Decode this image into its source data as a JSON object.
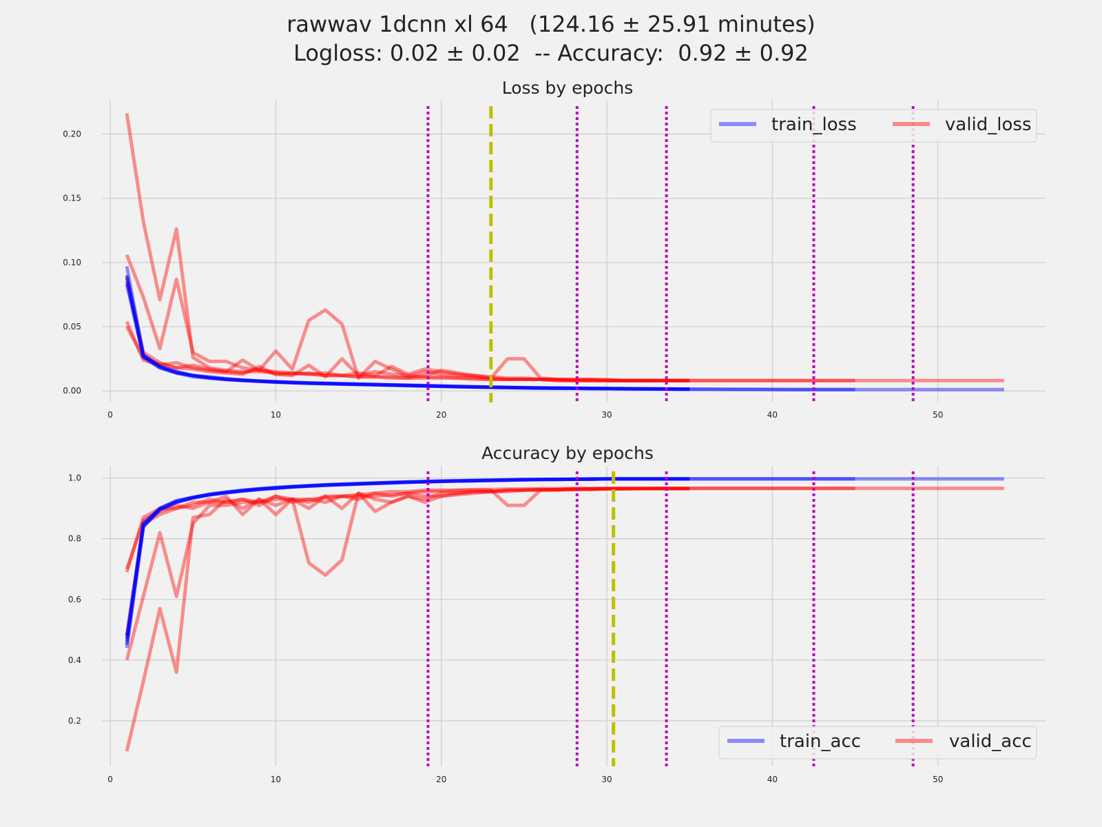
{
  "figure": {
    "title_line1": "rawwav 1dcnn xl 64   (124.16 ± 25.91 minutes)",
    "title_line2": "Logloss: 0.02 ± 0.02  -- Accuracy:  0.92 ± 0.92"
  },
  "colors": {
    "background": "#f1f1f1",
    "grid": "#cfcfcf",
    "train": "#0000ff",
    "valid": "#ff0000",
    "fold_end_marker": "#bf00bf",
    "best_epoch_marker": "#bfbf00"
  },
  "chart_data": [
    {
      "type": "line",
      "title": "Loss by epochs",
      "xlim": [
        -0.5,
        56.5
      ],
      "ylim": [
        -0.009,
        0.226
      ],
      "xticks": [
        0,
        10,
        20,
        30,
        40,
        50
      ],
      "yticks": [
        0.0,
        0.05,
        0.1,
        0.15,
        0.2
      ],
      "ytick_labels": [
        "0.00",
        "0.05",
        "0.10",
        "0.15",
        "0.20"
      ],
      "grid": true,
      "legend": {
        "placement": "top-right",
        "entries": [
          "train_loss",
          "valid_loss"
        ]
      },
      "vlines_dotted": [
        19.2,
        28.2,
        33.6,
        42.5,
        48.5
      ],
      "vline_dashed": 23,
      "series": [
        {
          "kind": "train",
          "values": [
            0.097,
            0.028,
            0.019,
            0.015,
            0.012,
            0.011,
            0.0095,
            0.0085,
            0.0078,
            0.0072,
            0.0067,
            0.0063,
            0.006,
            0.0057,
            0.0054,
            0.0051,
            0.0048,
            0.0045,
            0.0042,
            0.0039,
            0.0036,
            0.0033,
            0.003,
            0.0028,
            0.0026,
            0.0024,
            0.0022,
            0.0021,
            0.002,
            0.0019,
            0.0018,
            0.0017,
            0.0016,
            0.0015,
            0.0014,
            0.0013,
            0.0013,
            0.0012,
            0.0012,
            0.0012,
            0.0011,
            0.0011,
            0.0011,
            0.0011,
            0.0011,
            0.0011,
            0.0011,
            0.0011,
            0.0011,
            0.0011,
            0.0011,
            0.0011,
            0.0011,
            0.0011
          ]
        },
        {
          "kind": "train",
          "values": [
            0.09,
            0.027,
            0.018,
            0.014,
            0.012,
            0.01,
            0.009,
            0.0082,
            0.0075,
            0.007,
            0.0065,
            0.006,
            0.0057,
            0.0054,
            0.0051,
            0.0048,
            0.0045,
            0.0042,
            0.0039,
            0.0036,
            0.0033,
            0.003,
            0.0028,
            0.0026,
            0.0024,
            0.0022,
            0.0021,
            0.002,
            0.0019,
            0.0018,
            0.0017,
            0.0016,
            0.0015,
            0.0014,
            0.0013,
            0.0013,
            0.0012,
            0.0012,
            0.0012,
            0.0011,
            0.0011,
            0.0011,
            0.0011,
            0.0011,
            0.0011
          ]
        },
        {
          "kind": "train",
          "values": [
            0.085,
            0.026,
            0.018,
            0.014,
            0.011,
            0.01,
            0.0088,
            0.008,
            0.0074,
            0.0068,
            0.0063,
            0.0059,
            0.0056,
            0.0053,
            0.005,
            0.0047,
            0.0044,
            0.0041,
            0.0038,
            0.0035,
            0.0032,
            0.003,
            0.0028,
            0.0026,
            0.0024,
            0.0022,
            0.0021,
            0.002,
            0.0019,
            0.0018,
            0.0017,
            0.0016,
            0.0015,
            0.0014,
            0.0013
          ]
        },
        {
          "kind": "train",
          "values": [
            0.083,
            0.027,
            0.019,
            0.014,
            0.012,
            0.0102,
            0.009,
            0.0082,
            0.0076,
            0.007,
            0.0064,
            0.006,
            0.0057,
            0.0054,
            0.0051,
            0.0048,
            0.0045,
            0.0042,
            0.0039,
            0.0036,
            0.0033,
            0.003,
            0.0028,
            0.0026,
            0.0024,
            0.0022,
            0.0021,
            0.002,
            0.0019,
            0.0018,
            0.0017,
            0.0016,
            0.0015,
            0.0014,
            0.0013
          ]
        },
        {
          "kind": "train",
          "values": [
            0.088,
            0.028,
            0.019,
            0.015,
            0.012,
            0.0105,
            0.0093,
            0.0084,
            0.0077,
            0.0071,
            0.0066,
            0.0062,
            0.0058,
            0.0055,
            0.0052,
            0.0049,
            0.0046,
            0.0043,
            0.004,
            0.0037,
            0.0034,
            0.0031,
            0.0029,
            0.0027,
            0.0025,
            0.0023,
            0.0022,
            0.0021,
            0.002,
            0.0019,
            0.0018,
            0.0017,
            0.0016,
            0.0015,
            0.0014
          ]
        },
        {
          "kind": "valid",
          "values": [
            0.216,
            0.132,
            0.071,
            0.126,
            0.026,
            0.018,
            0.016,
            0.015,
            0.015,
            0.014,
            0.013,
            0.014,
            0.012,
            0.012,
            0.011,
            0.011,
            0.011,
            0.01,
            0.01,
            0.01,
            0.01,
            0.009,
            0.009,
            0.009,
            0.009,
            0.009,
            0.008,
            0.008,
            0.008,
            0.008,
            0.008,
            0.008,
            0.008,
            0.008,
            0.008,
            0.008,
            0.008,
            0.008,
            0.008,
            0.008,
            0.008,
            0.008,
            0.008,
            0.008,
            0.008,
            0.008,
            0.008,
            0.008,
            0.008,
            0.008,
            0.008,
            0.008,
            0.008,
            0.008
          ]
        },
        {
          "kind": "valid",
          "values": [
            0.106,
            0.073,
            0.033,
            0.087,
            0.03,
            0.023,
            0.023,
            0.018,
            0.016,
            0.015,
            0.014,
            0.013,
            0.012,
            0.012,
            0.011,
            0.011,
            0.01,
            0.01,
            0.012,
            0.016,
            0.014,
            0.012,
            0.01,
            0.025,
            0.025,
            0.01,
            0.009,
            0.009,
            0.009,
            0.008,
            0.008,
            0.008,
            0.008,
            0.008,
            0.008,
            0.008,
            0.008,
            0.008,
            0.008,
            0.008,
            0.008,
            0.008,
            0.008,
            0.008,
            0.008
          ]
        },
        {
          "kind": "valid",
          "values": [
            0.054,
            0.024,
            0.02,
            0.022,
            0.018,
            0.016,
            0.015,
            0.024,
            0.016,
            0.031,
            0.017,
            0.055,
            0.063,
            0.052,
            0.01,
            0.023,
            0.017,
            0.011,
            0.015,
            0.013,
            0.012,
            0.012,
            0.011,
            0.01,
            0.01,
            0.009,
            0.009,
            0.009,
            0.009,
            0.009,
            0.008,
            0.008,
            0.008,
            0.008,
            0.008
          ]
        },
        {
          "kind": "valid",
          "values": [
            0.05,
            0.026,
            0.021,
            0.018,
            0.02,
            0.017,
            0.015,
            0.014,
            0.017,
            0.013,
            0.012,
            0.02,
            0.011,
            0.025,
            0.012,
            0.015,
            0.013,
            0.012,
            0.011,
            0.011,
            0.01,
            0.01,
            0.009,
            0.009,
            0.009,
            0.009,
            0.008,
            0.008,
            0.008,
            0.008,
            0.008,
            0.008,
            0.008,
            0.008,
            0.008
          ]
        },
        {
          "kind": "valid",
          "values": [
            0.09,
            0.03,
            0.022,
            0.018,
            0.017,
            0.015,
            0.014,
            0.013,
            0.019,
            0.013,
            0.014,
            0.013,
            0.014,
            0.012,
            0.014,
            0.012,
            0.019,
            0.013,
            0.017,
            0.015,
            0.013,
            0.011,
            0.01,
            0.009,
            0.009,
            0.009,
            0.009,
            0.008,
            0.008,
            0.008,
            0.008,
            0.008,
            0.008,
            0.008,
            0.008
          ]
        }
      ]
    },
    {
      "type": "line",
      "title": "Accuracy by epochs",
      "xlim": [
        -0.5,
        56.5
      ],
      "ylim": [
        0.05,
        1.04
      ],
      "xticks": [
        0,
        10,
        20,
        30,
        40,
        50
      ],
      "yticks": [
        0.2,
        0.4,
        0.6,
        0.8,
        1.0
      ],
      "ytick_labels": [
        "0.2",
        "0.4",
        "0.6",
        "0.8",
        "1.0"
      ],
      "grid": true,
      "legend": {
        "placement": "bottom-right",
        "entries": [
          "train_acc",
          "valid_acc"
        ]
      },
      "vlines_dotted": [
        19.2,
        28.2,
        33.6,
        42.5,
        48.5
      ],
      "vline_dashed": 30.4,
      "series": [
        {
          "kind": "train",
          "values": [
            0.44,
            0.84,
            0.9,
            0.92,
            0.935,
            0.945,
            0.952,
            0.958,
            0.963,
            0.967,
            0.971,
            0.974,
            0.977,
            0.979,
            0.981,
            0.983,
            0.985,
            0.987,
            0.988,
            0.99,
            0.991,
            0.992,
            0.993,
            0.994,
            0.995,
            0.995,
            0.996,
            0.996,
            0.997,
            0.997,
            0.997,
            0.997,
            0.997,
            0.997,
            0.997,
            0.997,
            0.997,
            0.997,
            0.997,
            0.997,
            0.997,
            0.997,
            0.997,
            0.997,
            0.997,
            0.997,
            0.997,
            0.997,
            0.997,
            0.997,
            0.997,
            0.997,
            0.997,
            0.997
          ]
        },
        {
          "kind": "train",
          "values": [
            0.46,
            0.85,
            0.9,
            0.925,
            0.937,
            0.947,
            0.954,
            0.96,
            0.965,
            0.969,
            0.972,
            0.975,
            0.978,
            0.98,
            0.982,
            0.984,
            0.986,
            0.987,
            0.989,
            0.99,
            0.991,
            0.992,
            0.993,
            0.994,
            0.995,
            0.995,
            0.996,
            0.996,
            0.997,
            0.997,
            0.997,
            0.997,
            0.997,
            0.997,
            0.997,
            0.997,
            0.997,
            0.997,
            0.997,
            0.997,
            0.997,
            0.997,
            0.997,
            0.997,
            0.997
          ]
        },
        {
          "kind": "train",
          "values": [
            0.47,
            0.84,
            0.895,
            0.92,
            0.934,
            0.944,
            0.951,
            0.957,
            0.962,
            0.966,
            0.97,
            0.973,
            0.976,
            0.978,
            0.98,
            0.982,
            0.984,
            0.986,
            0.987,
            0.989,
            0.99,
            0.991,
            0.992,
            0.993,
            0.994,
            0.995,
            0.995,
            0.996,
            0.996,
            0.997,
            0.997,
            0.997,
            0.997,
            0.997,
            0.997
          ]
        },
        {
          "kind": "train",
          "values": [
            0.48,
            0.85,
            0.9,
            0.925,
            0.936,
            0.946,
            0.953,
            0.959,
            0.964,
            0.968,
            0.971,
            0.974,
            0.977,
            0.979,
            0.981,
            0.983,
            0.985,
            0.986,
            0.988,
            0.989,
            0.99,
            0.991,
            0.992,
            0.993,
            0.994,
            0.995,
            0.995,
            0.996,
            0.996,
            0.997,
            0.997,
            0.997,
            0.997,
            0.997,
            0.997
          ]
        },
        {
          "kind": "train",
          "values": [
            0.45,
            0.84,
            0.895,
            0.92,
            0.935,
            0.945,
            0.952,
            0.958,
            0.963,
            0.967,
            0.971,
            0.974,
            0.976,
            0.978,
            0.98,
            0.982,
            0.984,
            0.986,
            0.987,
            0.989,
            0.99,
            0.991,
            0.992,
            0.993,
            0.994,
            0.995,
            0.995,
            0.996,
            0.996,
            0.997,
            0.997,
            0.997,
            0.997,
            0.997,
            0.997
          ]
        },
        {
          "kind": "valid",
          "values": [
            0.1,
            0.33,
            0.57,
            0.36,
            0.87,
            0.88,
            0.93,
            0.9,
            0.93,
            0.91,
            0.93,
            0.92,
            0.94,
            0.94,
            0.945,
            0.95,
            0.955,
            0.955,
            0.96,
            0.96,
            0.96,
            0.962,
            0.962,
            0.964,
            0.964,
            0.965,
            0.965,
            0.966,
            0.966,
            0.966,
            0.966,
            0.966,
            0.966,
            0.966,
            0.966,
            0.966,
            0.966,
            0.966,
            0.966,
            0.966,
            0.966,
            0.966,
            0.966,
            0.966,
            0.966,
            0.966,
            0.966,
            0.966,
            0.966,
            0.966,
            0.966,
            0.966,
            0.966,
            0.966
          ]
        },
        {
          "kind": "valid",
          "values": [
            0.4,
            0.61,
            0.82,
            0.61,
            0.85,
            0.91,
            0.91,
            0.92,
            0.92,
            0.93,
            0.93,
            0.93,
            0.935,
            0.94,
            0.94,
            0.94,
            0.945,
            0.95,
            0.955,
            0.955,
            0.96,
            0.96,
            0.96,
            0.91,
            0.91,
            0.96,
            0.962,
            0.962,
            0.964,
            0.964,
            0.965,
            0.965,
            0.966,
            0.966,
            0.966,
            0.966,
            0.966,
            0.966,
            0.966,
            0.966,
            0.966,
            0.966,
            0.966,
            0.966,
            0.966
          ]
        },
        {
          "kind": "valid",
          "values": [
            0.69,
            0.87,
            0.9,
            0.9,
            0.92,
            0.92,
            0.94,
            0.88,
            0.93,
            0.88,
            0.93,
            0.72,
            0.68,
            0.73,
            0.95,
            0.89,
            0.92,
            0.94,
            0.92,
            0.94,
            0.945,
            0.95,
            0.955,
            0.955,
            0.96,
            0.96,
            0.96,
            0.962,
            0.962,
            0.964,
            0.964,
            0.965,
            0.965,
            0.965,
            0.965
          ]
        },
        {
          "kind": "valid",
          "values": [
            0.7,
            0.86,
            0.89,
            0.91,
            0.9,
            0.92,
            0.92,
            0.93,
            0.91,
            0.94,
            0.93,
            0.9,
            0.94,
            0.9,
            0.95,
            0.93,
            0.92,
            0.94,
            0.93,
            0.95,
            0.95,
            0.955,
            0.955,
            0.96,
            0.96,
            0.962,
            0.962,
            0.964,
            0.964,
            0.965,
            0.965,
            0.965,
            0.965,
            0.965,
            0.965
          ]
        },
        {
          "kind": "valid",
          "values": [
            0.48,
            0.85,
            0.88,
            0.9,
            0.91,
            0.93,
            0.92,
            0.93,
            0.92,
            0.94,
            0.92,
            0.93,
            0.92,
            0.94,
            0.93,
            0.95,
            0.94,
            0.95,
            0.94,
            0.94,
            0.95,
            0.955,
            0.955,
            0.96,
            0.96,
            0.962,
            0.962,
            0.964,
            0.964,
            0.965,
            0.965,
            0.965,
            0.965,
            0.965,
            0.965
          ]
        }
      ]
    }
  ]
}
